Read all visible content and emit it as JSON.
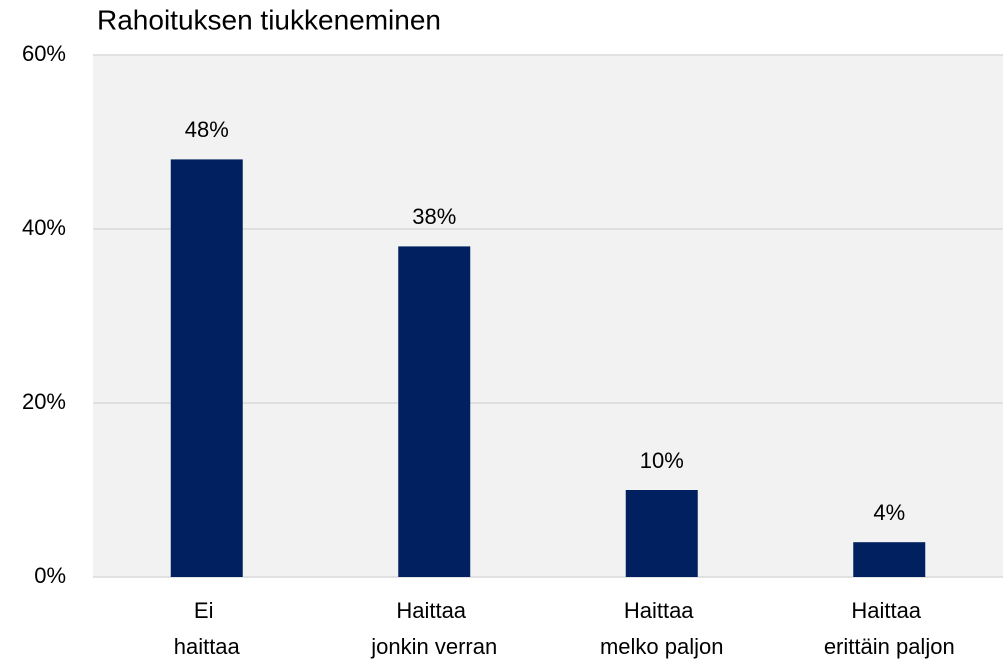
{
  "chart_data": {
    "type": "bar",
    "title": "Rahoituksen tiukkeneminen",
    "categories": [
      "Ei haittaa",
      "Haittaa jonkin verran",
      "Haittaa melko paljon",
      "Haittaa erittäin paljon"
    ],
    "values": [
      48,
      38,
      10,
      4
    ],
    "value_labels": [
      "48%",
      "38%",
      "10%",
      "4%"
    ],
    "color": "#002060",
    "ylim": [
      0,
      60
    ],
    "yticks": [
      {
        "value": 0,
        "label": "0%"
      },
      {
        "value": 20,
        "label": "20%"
      },
      {
        "value": 40,
        "label": "40%"
      },
      {
        "value": 60,
        "label": "60%"
      }
    ],
    "grid": true
  }
}
